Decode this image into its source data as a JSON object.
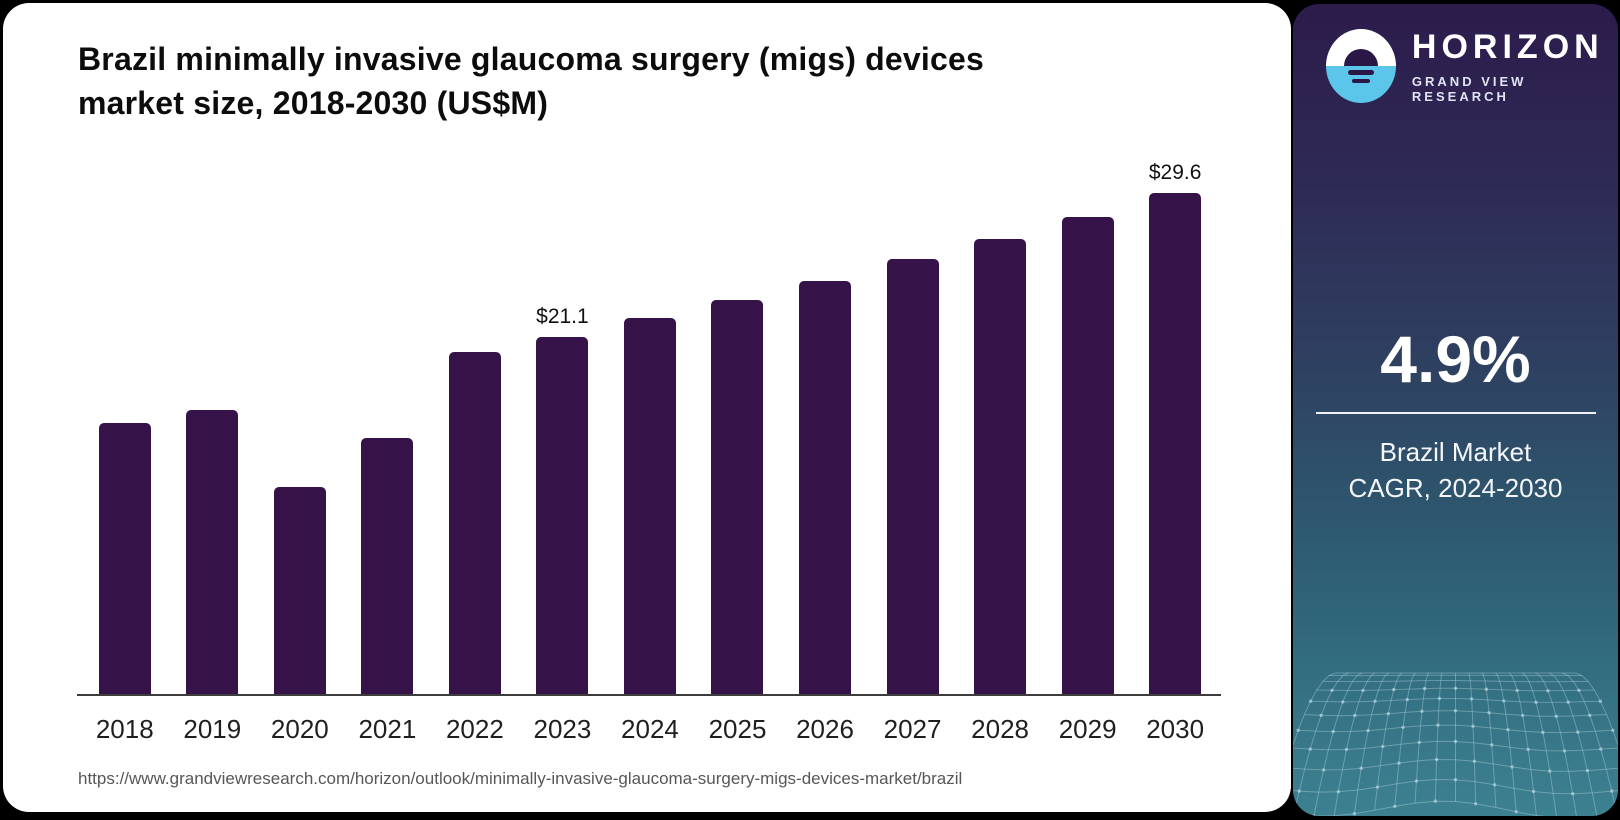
{
  "page": {
    "title_line1": "Brazil minimally invasive glaucoma surgery (migs) devices",
    "title_line2": "market size, 2018-2030 (US$M)",
    "source_url": "https://www.grandviewresearch.com/horizon/outlook/minimally-invasive-glaucoma-surgery-migs-devices-market/brazil"
  },
  "chart_data": {
    "type": "bar",
    "title": "Brazil minimally invasive glaucoma surgery (migs) devices market size, 2018-2030 (US$M)",
    "unit": "US$M",
    "categories": [
      "2018",
      "2019",
      "2020",
      "2021",
      "2022",
      "2023",
      "2024",
      "2025",
      "2026",
      "2027",
      "2028",
      "2029",
      "2030"
    ],
    "values": [
      16.0,
      16.8,
      12.2,
      15.1,
      20.2,
      21.1,
      22.2,
      23.3,
      24.4,
      25.7,
      26.9,
      28.2,
      29.6
    ],
    "value_labels": {
      "2023": "$21.1",
      "2030": "$29.6"
    },
    "bar_color": "#351247",
    "axis_color": "#3c3c3c",
    "ylim": [
      0,
      30
    ],
    "grid": false,
    "legend": false,
    "xlabel": "",
    "ylabel": ""
  },
  "sidebar": {
    "brand": "HORIZON",
    "brand_sub": "GRAND VIEW RESEARCH",
    "stat_value": "4.9%",
    "stat_caption_line1": "Brazil Market",
    "stat_caption_line2": "CAGR, 2024-2030",
    "colors": {
      "gradient_top": "#2c1b4b",
      "gradient_bottom": "#3d8191",
      "logo_blue": "#5bc6ea",
      "logo_dark": "#2a1745"
    }
  }
}
